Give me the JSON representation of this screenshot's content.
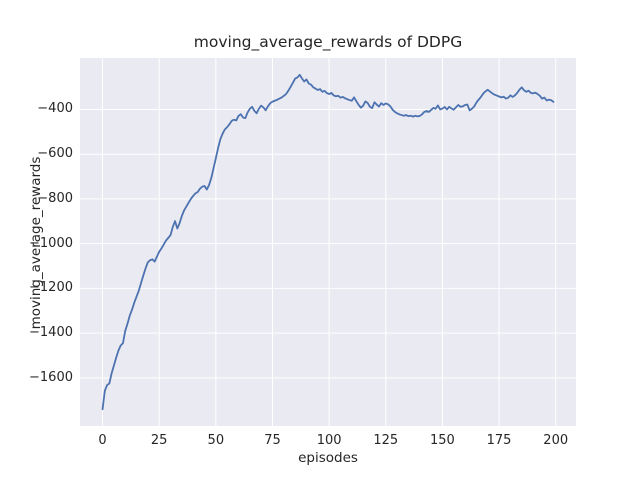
{
  "figure": {
    "title": "moving_average_rewards of DDPG",
    "xlabel": "episodes",
    "ylabel": "moving_average_rewards"
  },
  "chart_data": {
    "type": "line",
    "title": "moving_average_rewards of DDPG",
    "xlabel": "episodes",
    "ylabel": "moving_average_rewards",
    "grid": true,
    "legend": null,
    "x_ticks": [
      0,
      25,
      50,
      75,
      100,
      125,
      150,
      175,
      200
    ],
    "y_ticks": [
      -400,
      -600,
      -800,
      -1000,
      -1200,
      -1400,
      -1600
    ],
    "xlim": [
      -9.95,
      208.95
    ],
    "ylim": [
      -1815,
      -170
    ],
    "colors": {
      "line": "#4C72B0",
      "axes_background": "#EAEAF2",
      "grid": "#FFFFFF",
      "figure_background": "#FFFFFF",
      "text": "#262626"
    },
    "series": [
      {
        "name": "moving_average_rewards",
        "color": "#4C72B0",
        "x_start": 0,
        "x_step": 1,
        "values": [
          -1740,
          -1658,
          -1632,
          -1625,
          -1580,
          -1545,
          -1510,
          -1478,
          -1455,
          -1445,
          -1390,
          -1358,
          -1322,
          -1295,
          -1264,
          -1237,
          -1210,
          -1175,
          -1142,
          -1110,
          -1083,
          -1074,
          -1070,
          -1080,
          -1058,
          -1036,
          -1021,
          -1004,
          -986,
          -974,
          -962,
          -925,
          -899,
          -932,
          -908,
          -876,
          -851,
          -834,
          -816,
          -800,
          -786,
          -775,
          -769,
          -754,
          -745,
          -742,
          -758,
          -738,
          -706,
          -662,
          -618,
          -572,
          -533,
          -508,
          -489,
          -479,
          -466,
          -451,
          -446,
          -449,
          -429,
          -421,
          -436,
          -439,
          -414,
          -397,
          -388,
          -406,
          -417,
          -397,
          -383,
          -391,
          -404,
          -386,
          -372,
          -365,
          -361,
          -357,
          -352,
          -347,
          -339,
          -331,
          -316,
          -299,
          -281,
          -262,
          -257,
          -245,
          -261,
          -275,
          -266,
          -284,
          -289,
          -301,
          -307,
          -313,
          -309,
          -321,
          -317,
          -327,
          -331,
          -326,
          -337,
          -341,
          -339,
          -347,
          -344,
          -350,
          -354,
          -358,
          -361,
          -346,
          -363,
          -379,
          -392,
          -383,
          -364,
          -371,
          -388,
          -394,
          -368,
          -378,
          -387,
          -372,
          -380,
          -373,
          -377,
          -386,
          -401,
          -411,
          -417,
          -422,
          -425,
          -428,
          -425,
          -430,
          -428,
          -432,
          -428,
          -431,
          -429,
          -422,
          -411,
          -407,
          -411,
          -402,
          -393,
          -397,
          -382,
          -400,
          -396,
          -389,
          -400,
          -388,
          -396,
          -401,
          -390,
          -380,
          -388,
          -386,
          -380,
          -378,
          -404,
          -397,
          -387,
          -369,
          -356,
          -344,
          -329,
          -319,
          -312,
          -320,
          -328,
          -334,
          -338,
          -342,
          -346,
          -343,
          -351,
          -348,
          -337,
          -344,
          -337,
          -326,
          -312,
          -301,
          -314,
          -321,
          -316,
          -326,
          -328,
          -325,
          -331,
          -339,
          -352,
          -347,
          -360,
          -356,
          -359,
          -366
        ]
      }
    ]
  }
}
